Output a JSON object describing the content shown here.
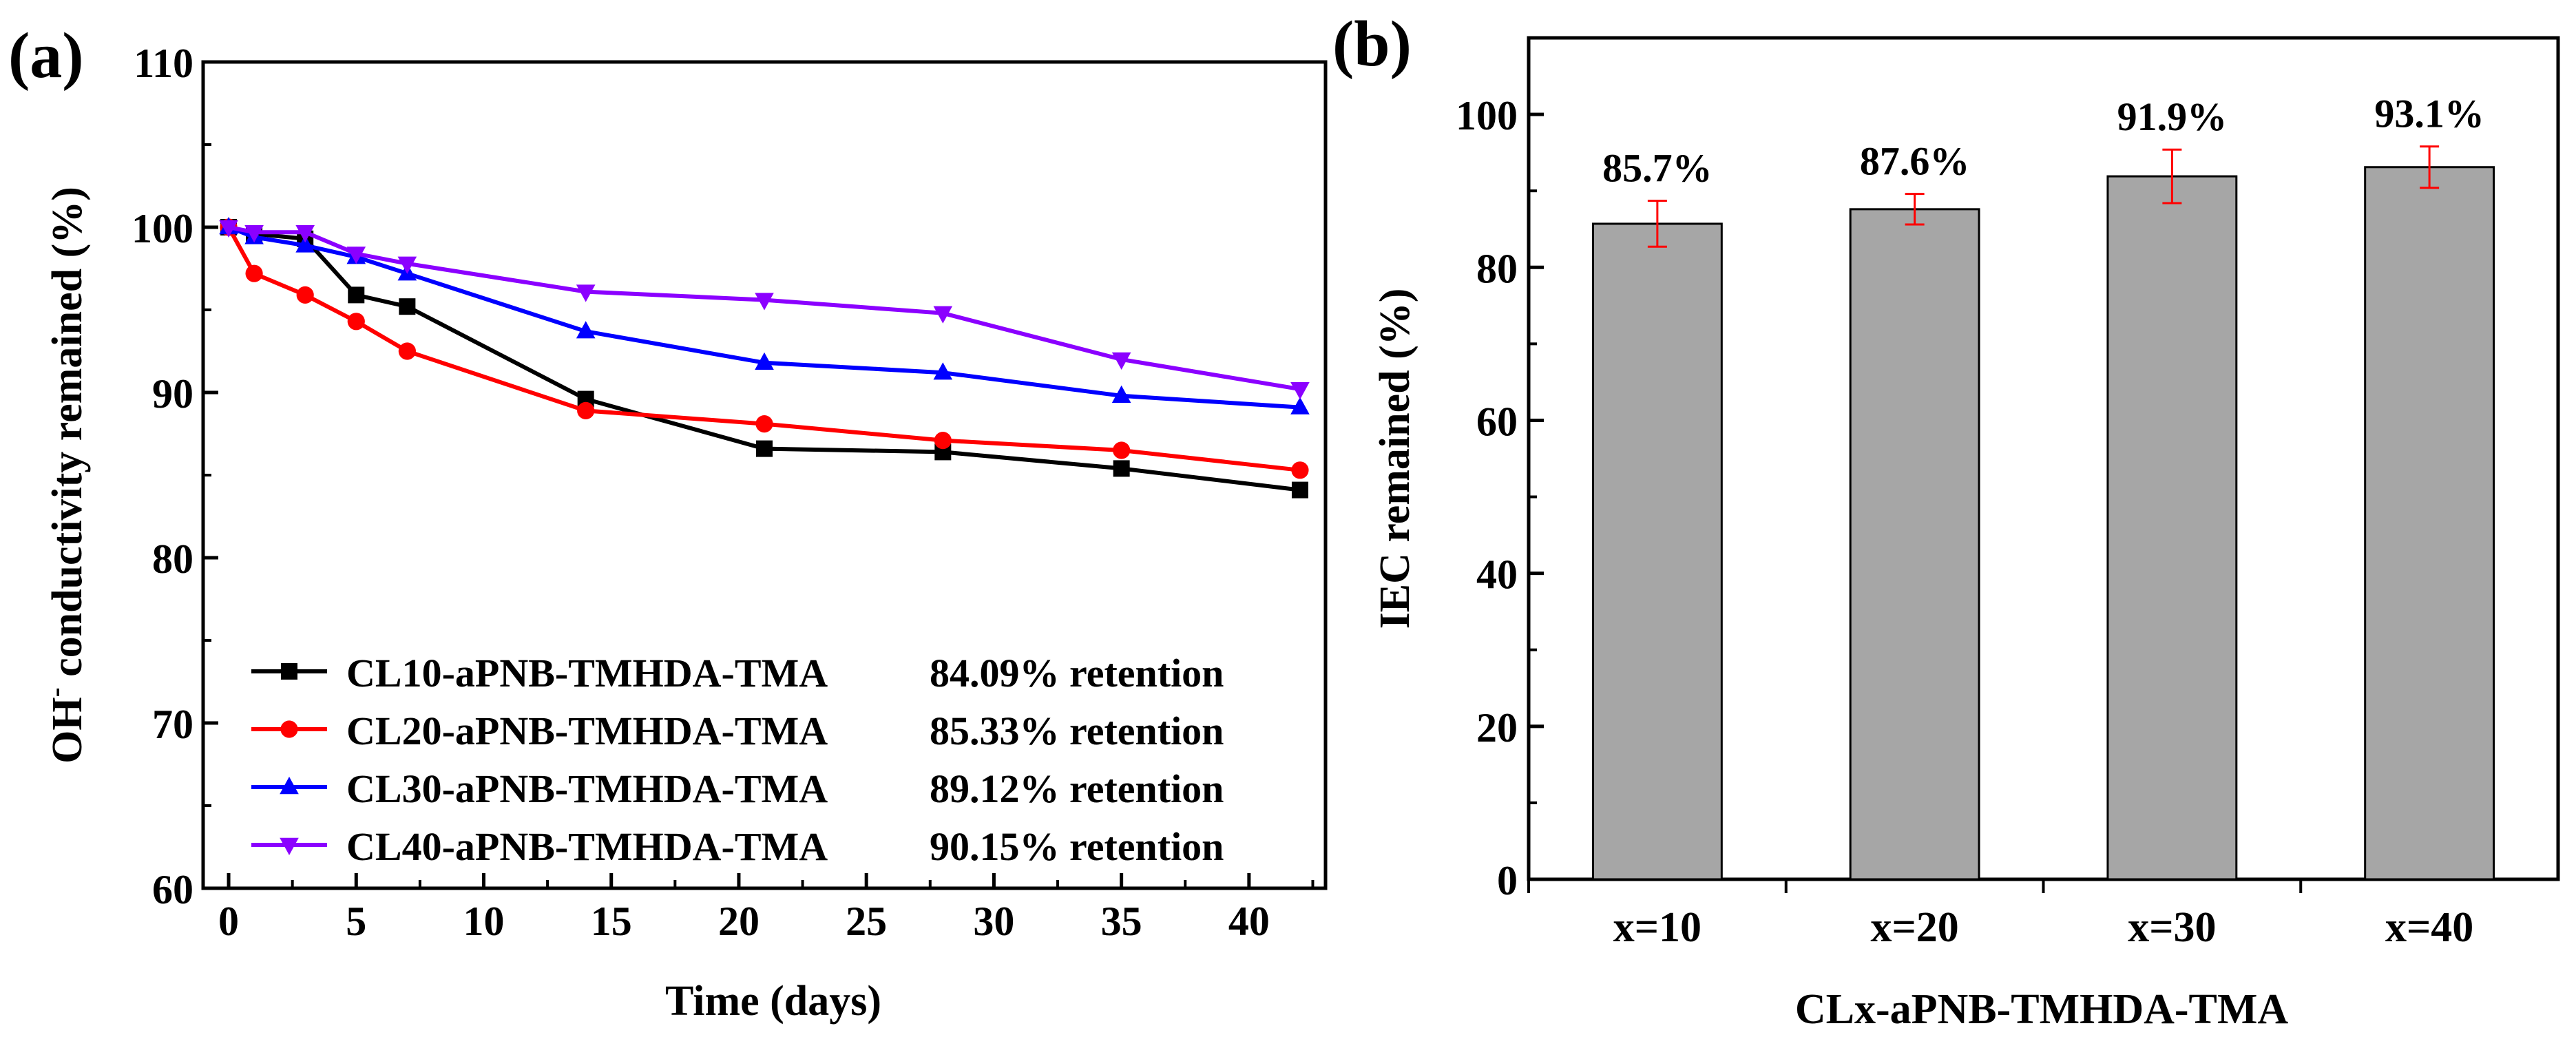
{
  "chart_data": [
    {
      "panel_label": "(a)",
      "type": "line",
      "title": "",
      "xlabel": "Time (days)",
      "ylabel": "OH⁻ conductivity remained (%)",
      "xlim": [
        -1,
        43
      ],
      "ylim": [
        60,
        110
      ],
      "xticks": [
        0,
        5,
        10,
        15,
        20,
        25,
        30,
        35,
        40
      ],
      "yticks": [
        60,
        70,
        80,
        90,
        100,
        110
      ],
      "x": [
        0,
        1,
        3,
        5,
        7,
        14,
        21,
        28,
        35,
        42
      ],
      "series": [
        {
          "name": "CL10-aPNB-TMHDA-TMA",
          "retention": "84.09% retention",
          "color": "#000000",
          "marker": "square",
          "values": [
            100,
            99.6,
            99.3,
            95.9,
            95.2,
            89.6,
            86.6,
            86.4,
            85.4,
            84.1
          ]
        },
        {
          "name": "CL20-aPNB-TMHDA-TMA",
          "retention": "85.33% retention",
          "color": "#ff0000",
          "marker": "circle",
          "values": [
            100,
            97.2,
            95.9,
            94.3,
            92.5,
            88.9,
            88.1,
            87.1,
            86.5,
            85.3
          ]
        },
        {
          "name": "CL30-aPNB-TMHDA-TMA",
          "retention": "89.12% retention",
          "color": "#0000ff",
          "marker": "triangle-up",
          "values": [
            100,
            99.4,
            98.9,
            98.2,
            97.2,
            93.7,
            91.8,
            91.2,
            89.8,
            89.1
          ]
        },
        {
          "name": "CL40-aPNB-TMHDA-TMA",
          "retention": "90.15% retention",
          "color": "#8b00ff",
          "marker": "triangle-down",
          "values": [
            100,
            99.7,
            99.7,
            98.4,
            97.8,
            96.1,
            95.6,
            94.8,
            92.0,
            90.2
          ]
        }
      ],
      "legend": "bottom-left"
    },
    {
      "panel_label": "(b)",
      "type": "bar",
      "title": "",
      "xlabel": "CLx-aPNB-TMHDA-TMA",
      "ylabel": "IEC remained (%)",
      "ylim": [
        0,
        110
      ],
      "yticks": [
        0,
        20,
        40,
        60,
        80,
        100
      ],
      "categories": [
        "x=10",
        "x=20",
        "x=30",
        "x=40"
      ],
      "values": [
        85.7,
        87.6,
        91.9,
        93.1
      ],
      "errors": [
        3.0,
        2.0,
        3.5,
        2.7
      ],
      "value_labels": [
        "85.7%",
        "87.6%",
        "91.9%",
        "93.1%"
      ],
      "bar_color": "#a6a6a6",
      "error_color": "#ff0000"
    }
  ]
}
